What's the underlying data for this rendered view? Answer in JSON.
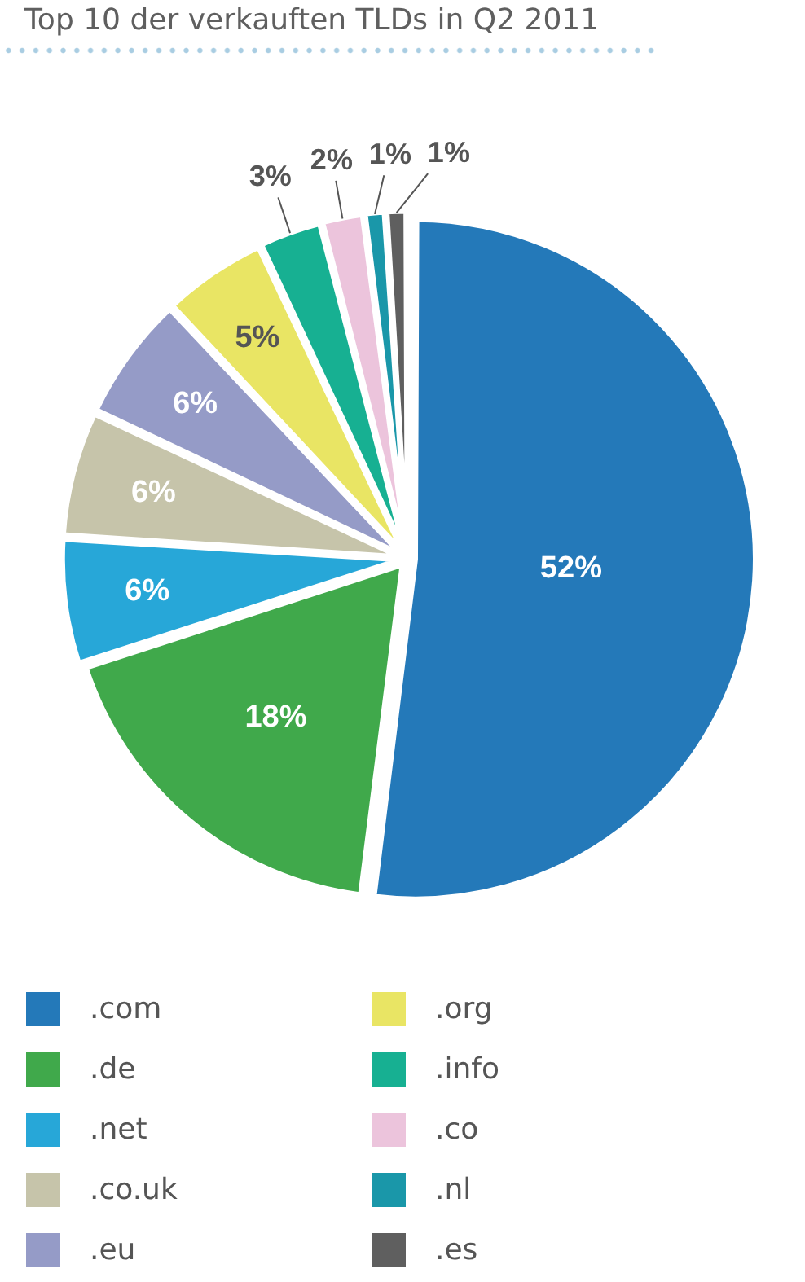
{
  "chart_data": {
    "type": "pie",
    "title": "Top 10 der verkauften TLDs in Q2 2011",
    "categories": [
      ".com",
      ".de",
      ".net",
      ".co.uk",
      ".eu",
      ".org",
      ".info",
      ".co",
      ".nl",
      ".es"
    ],
    "values": [
      52,
      18,
      6,
      6,
      6,
      5,
      3,
      2,
      1,
      1
    ],
    "colors": [
      "#2479b9",
      "#40a94b",
      "#27a7d8",
      "#c6c4aa",
      "#959bc7",
      "#e9e564",
      "#17b092",
      "#ecc4dc",
      "#1a97a9",
      "#5f5f5f"
    ],
    "value_labels": [
      "52%",
      "18%",
      "6%",
      "6%",
      "6%",
      "5%",
      "3%",
      "2%",
      "1%",
      "1%"
    ],
    "legend": "bottom"
  }
}
